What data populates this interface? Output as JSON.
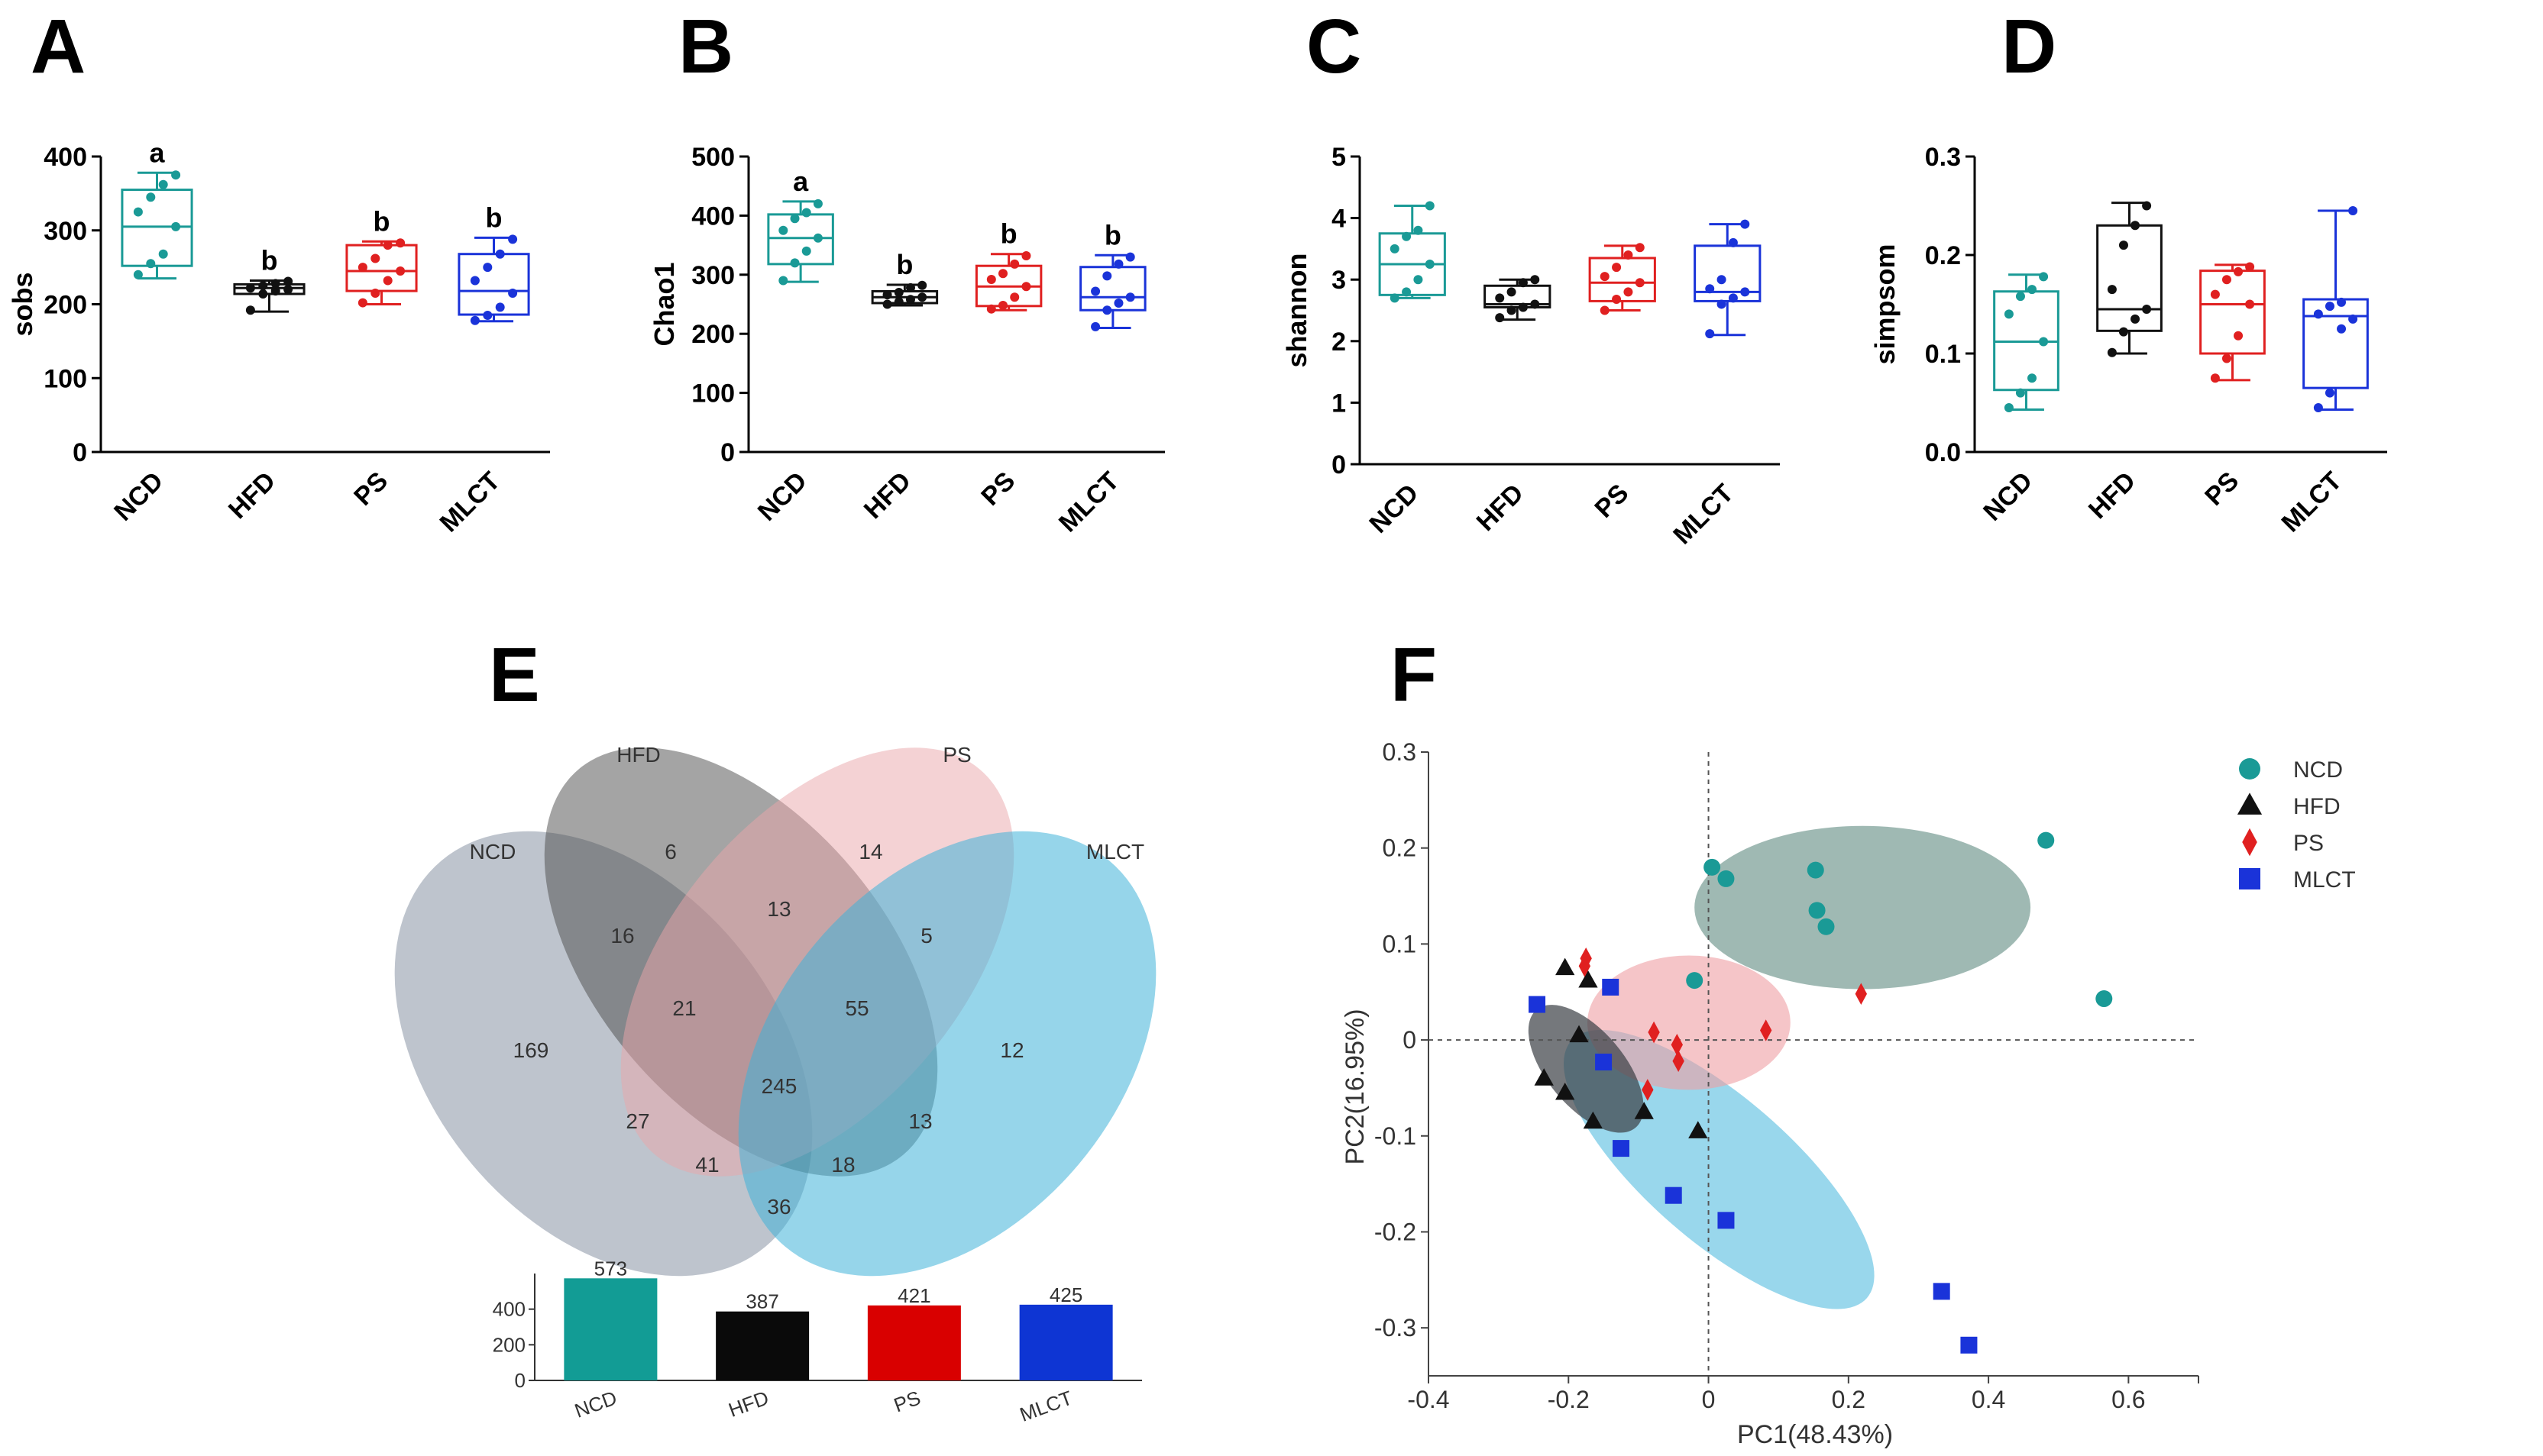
{
  "chart_data": [
    {
      "panel": "A",
      "type": "box",
      "ylabel": "sobs",
      "ylim": [
        0,
        400
      ],
      "yticks": [
        "0",
        "100",
        "200",
        "300",
        "400"
      ],
      "categories": [
        "NCD",
        "HFD",
        "PS",
        "MLCT"
      ],
      "significance": [
        "a",
        "b",
        "b",
        "b"
      ],
      "boxes": [
        {
          "min": 235,
          "q1": 252,
          "median": 305,
          "q3": 355,
          "max": 378,
          "points": [
            240,
            255,
            268,
            305,
            325,
            345,
            362,
            375
          ]
        },
        {
          "min": 190,
          "q1": 214,
          "median": 222,
          "q3": 227,
          "max": 232,
          "points": [
            192,
            214,
            218,
            220,
            222,
            225,
            228,
            231
          ]
        },
        {
          "min": 200,
          "q1": 218,
          "median": 245,
          "q3": 280,
          "max": 285,
          "points": [
            202,
            215,
            232,
            245,
            250,
            262,
            280,
            283
          ]
        },
        {
          "min": 177,
          "q1": 186,
          "median": 218,
          "q3": 268,
          "max": 290,
          "points": [
            178,
            185,
            196,
            215,
            232,
            250,
            268,
            288
          ]
        }
      ]
    },
    {
      "panel": "B",
      "type": "box",
      "ylabel": "Chao1",
      "ylim": [
        0,
        500
      ],
      "yticks": [
        "0",
        "100",
        "200",
        "300",
        "400",
        "500"
      ],
      "categories": [
        "NCD",
        "HFD",
        "PS",
        "MLCT"
      ],
      "significance": [
        "a",
        "b",
        "b",
        "b"
      ],
      "boxes": [
        {
          "min": 288,
          "q1": 318,
          "median": 362,
          "q3": 402,
          "max": 424,
          "points": [
            290,
            320,
            340,
            362,
            375,
            395,
            405,
            420
          ]
        },
        {
          "min": 248,
          "q1": 252,
          "median": 262,
          "q3": 272,
          "max": 283,
          "points": [
            250,
            254,
            258,
            262,
            266,
            270,
            278,
            282
          ]
        },
        {
          "min": 240,
          "q1": 247,
          "median": 280,
          "q3": 315,
          "max": 335,
          "points": [
            242,
            248,
            262,
            280,
            292,
            302,
            318,
            332
          ]
        },
        {
          "min": 210,
          "q1": 240,
          "median": 262,
          "q3": 313,
          "max": 333,
          "points": [
            212,
            240,
            252,
            262,
            272,
            298,
            318,
            330
          ]
        }
      ]
    },
    {
      "panel": "C",
      "type": "box",
      "ylabel": "shannon",
      "ylim": [
        0,
        5
      ],
      "yticks": [
        "0",
        "1",
        "2",
        "3",
        "4",
        "5"
      ],
      "categories": [
        "NCD",
        "HFD",
        "PS",
        "MLCT"
      ],
      "significance": [
        "",
        "",
        "",
        ""
      ],
      "boxes": [
        {
          "min": 2.7,
          "q1": 2.75,
          "median": 3.25,
          "q3": 3.75,
          "max": 4.2,
          "points": [
            2.7,
            2.8,
            3.0,
            3.25,
            3.5,
            3.7,
            3.8,
            4.2
          ]
        },
        {
          "min": 2.35,
          "q1": 2.55,
          "median": 2.6,
          "q3": 2.9,
          "max": 3.0,
          "points": [
            2.38,
            2.5,
            2.55,
            2.6,
            2.7,
            2.8,
            2.95,
            3.0
          ]
        },
        {
          "min": 2.5,
          "q1": 2.65,
          "median": 2.95,
          "q3": 3.35,
          "max": 3.55,
          "points": [
            2.5,
            2.68,
            2.8,
            2.95,
            3.05,
            3.2,
            3.4,
            3.52
          ]
        },
        {
          "min": 2.1,
          "q1": 2.65,
          "median": 2.8,
          "q3": 3.55,
          "max": 3.9,
          "points": [
            2.12,
            2.6,
            2.7,
            2.8,
            2.85,
            3.0,
            3.6,
            3.9
          ]
        }
      ]
    },
    {
      "panel": "D",
      "type": "box",
      "ylabel": "simpsom",
      "ylim": [
        0,
        0.3
      ],
      "yticks": [
        "0.0",
        "0.1",
        "0.2",
        "0.3"
      ],
      "categories": [
        "NCD",
        "HFD",
        "PS",
        "MLCT"
      ],
      "significance": [
        "",
        "",
        "",
        ""
      ],
      "boxes": [
        {
          "min": 0.043,
          "q1": 0.063,
          "median": 0.112,
          "q3": 0.163,
          "max": 0.18,
          "points": [
            0.045,
            0.06,
            0.075,
            0.112,
            0.14,
            0.158,
            0.165,
            0.178
          ]
        },
        {
          "min": 0.1,
          "q1": 0.123,
          "median": 0.145,
          "q3": 0.23,
          "max": 0.253,
          "points": [
            0.101,
            0.122,
            0.135,
            0.145,
            0.165,
            0.21,
            0.23,
            0.25
          ]
        },
        {
          "min": 0.073,
          "q1": 0.1,
          "median": 0.15,
          "q3": 0.184,
          "max": 0.19,
          "points": [
            0.075,
            0.095,
            0.118,
            0.15,
            0.16,
            0.175,
            0.183,
            0.188
          ]
        },
        {
          "min": 0.043,
          "q1": 0.065,
          "median": 0.138,
          "q3": 0.155,
          "max": 0.245,
          "points": [
            0.045,
            0.06,
            0.125,
            0.135,
            0.14,
            0.148,
            0.152,
            0.245
          ]
        }
      ]
    },
    {
      "panel": "E",
      "type": "venn",
      "sets": [
        "NCD",
        "HFD",
        "PS",
        "MLCT"
      ],
      "regions": {
        "NCD_only": "169",
        "HFD_only": "6",
        "PS_only": "14",
        "MLCT_only": "12",
        "NCD_HFD": "16",
        "HFD_PS": "13",
        "PS_MLCT": "5",
        "NCD_HFD_PS": "21",
        "HFD_PS_MLCT": "55",
        "all": "245",
        "NCD_PS": "27",
        "HFD_MLCT": "13",
        "NCD_PS_MLCT": "41",
        "NCD_HFD_MLCT": "18",
        "NCD_MLCT": "36"
      },
      "bars": {
        "categories": [
          "NCD",
          "HFD",
          "PS",
          "MLCT"
        ],
        "values": [
          573,
          387,
          421,
          425
        ],
        "labels": [
          "573",
          "387",
          "421",
          "425"
        ],
        "ylim": [
          0,
          600
        ],
        "yticks": [
          "0",
          "200",
          "400"
        ]
      }
    },
    {
      "panel": "F",
      "type": "scatter",
      "xlabel": "PC1(48.43%)",
      "ylabel": "PC2(16.95%)",
      "xlim": [
        -0.4,
        0.7
      ],
      "ylim": [
        -0.35,
        0.3
      ],
      "xticks": [
        "-0.4",
        "-0.2",
        "0",
        "0.2",
        "0.4",
        "0.6"
      ],
      "yticks": [
        "0.3",
        "0.2",
        "0.1",
        "0",
        "-0.1",
        "-0.2",
        "-0.3"
      ],
      "legend": [
        "NCD",
        "HFD",
        "PS",
        "MLCT"
      ],
      "legend_position": "top-right",
      "series": [
        {
          "name": "NCD",
          "points": [
            [
              0.005,
              0.18
            ],
            [
              0.025,
              0.168
            ],
            [
              0.153,
              0.177
            ],
            [
              0.155,
              0.135
            ],
            [
              0.168,
              0.118
            ],
            [
              0.482,
              0.208
            ],
            [
              0.565,
              0.043
            ],
            [
              -0.02,
              0.062
            ]
          ]
        },
        {
          "name": "HFD",
          "points": [
            [
              -0.205,
              0.075
            ],
            [
              -0.172,
              0.062
            ],
            [
              -0.185,
              0.005
            ],
            [
              -0.235,
              -0.04
            ],
            [
              -0.205,
              -0.055
            ],
            [
              -0.165,
              -0.085
            ],
            [
              -0.092,
              -0.075
            ],
            [
              -0.015,
              -0.095
            ]
          ]
        },
        {
          "name": "PS",
          "points": [
            [
              -0.175,
              0.085
            ],
            [
              -0.177,
              0.077
            ],
            [
              -0.078,
              0.008
            ],
            [
              -0.045,
              -0.005
            ],
            [
              -0.043,
              -0.022
            ],
            [
              -0.087,
              -0.052
            ],
            [
              0.082,
              0.01
            ],
            [
              0.218,
              0.048
            ]
          ]
        },
        {
          "name": "MLCT",
          "points": [
            [
              -0.245,
              0.037
            ],
            [
              -0.14,
              0.055
            ],
            [
              -0.15,
              -0.023
            ],
            [
              -0.125,
              -0.113
            ],
            [
              -0.05,
              -0.162
            ],
            [
              0.025,
              -0.188
            ],
            [
              0.333,
              -0.262
            ],
            [
              0.372,
              -0.318
            ]
          ]
        }
      ]
    }
  ],
  "colors": {
    "NCD": "#1a9a96",
    "HFD": "#111111",
    "PS": "#e02020",
    "MLCT": "#1a33d9",
    "venn_NCD": "#8894a4",
    "venn_HFD": "#4a4a4a",
    "venn_PS": "#e9a6aa",
    "venn_MLCT": "#3fb3d8",
    "bar_NCD": "#129c95",
    "bar_HFD": "#0a0a0a",
    "bar_PS": "#d90000",
    "bar_MLCT": "#0e35d3",
    "ell_NCD": "#5f8b80",
    "ell_HFD": "#3a3f44",
    "ell_PS": "#ef9ea4",
    "ell_MLCT": "#55bde0"
  }
}
